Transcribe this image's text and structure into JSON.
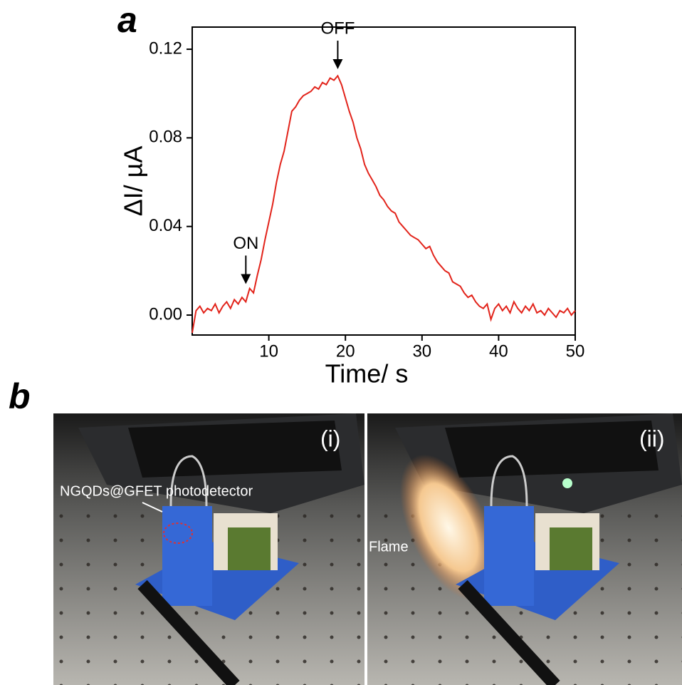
{
  "panel_labels": [
    "a",
    "b"
  ],
  "chart_data": {
    "type": "line",
    "x_label": "Time/ s",
    "y_label": "ΔI/ µA",
    "xlim": [
      0,
      50
    ],
    "ylim": [
      -0.009,
      0.13
    ],
    "xticks": [
      10,
      20,
      30,
      40,
      50
    ],
    "yticks": [
      {
        "value": 0,
        "label": "0.00"
      },
      0.04,
      0.08,
      0.12
    ],
    "color": "#e2231a",
    "x": [
      0,
      0.5,
      1,
      1.5,
      2,
      2.5,
      3,
      3.5,
      4,
      4.5,
      5,
      5.5,
      6,
      6.5,
      7,
      7.5,
      8,
      8.5,
      9,
      9.5,
      10,
      10.5,
      11,
      11.5,
      12,
      12.5,
      13,
      13.5,
      14,
      14.5,
      15,
      15.5,
      16,
      16.5,
      17,
      17.5,
      18,
      18.5,
      19,
      19.5,
      20,
      20.5,
      21,
      21.5,
      22,
      22.5,
      23,
      23.5,
      24,
      24.5,
      25,
      25.5,
      26,
      26.5,
      27,
      27.5,
      28,
      28.5,
      29,
      29.5,
      30,
      30.5,
      31,
      31.5,
      32,
      32.5,
      33,
      33.5,
      34,
      34.5,
      35,
      35.5,
      36,
      36.5,
      37,
      37.5,
      38,
      38.5,
      39,
      39.5,
      40,
      40.5,
      41,
      41.5,
      42,
      42.5,
      43,
      43.5,
      44,
      44.5,
      45,
      45.5,
      46,
      46.5,
      47,
      47.5,
      48,
      48.5,
      49,
      49.5,
      50
    ],
    "values": [
      -0.008,
      0.002,
      0.004,
      0.001,
      0.003,
      0.002,
      0.005,
      0.001,
      0.004,
      0.006,
      0.003,
      0.007,
      0.005,
      0.008,
      0.006,
      0.012,
      0.01,
      0.018,
      0.025,
      0.034,
      0.042,
      0.05,
      0.06,
      0.068,
      0.074,
      0.083,
      0.092,
      0.094,
      0.097,
      0.099,
      0.1,
      0.101,
      0.103,
      0.102,
      0.105,
      0.104,
      0.107,
      0.106,
      0.108,
      0.104,
      0.098,
      0.092,
      0.087,
      0.08,
      0.075,
      0.068,
      0.064,
      0.061,
      0.058,
      0.054,
      0.052,
      0.049,
      0.047,
      0.046,
      0.042,
      0.04,
      0.038,
      0.036,
      0.035,
      0.034,
      0.032,
      0.03,
      0.031,
      0.027,
      0.024,
      0.022,
      0.02,
      0.019,
      0.015,
      0.014,
      0.013,
      0.01,
      0.008,
      0.009,
      0.006,
      0.004,
      0.003,
      0.005,
      -0.002,
      0.003,
      0.005,
      0.002,
      0.004,
      0.001,
      0.006,
      0.003,
      0.001,
      0.004,
      0.002,
      0.005,
      0.001,
      0.002,
      0.0,
      0.003,
      0.001,
      -0.001,
      0.002,
      0.001,
      0.003,
      0.0,
      0.002
    ],
    "annotations": [
      {
        "text": "ON",
        "x": 7,
        "y": 0.014
      },
      {
        "text": "OFF",
        "x": 19,
        "y": 0.111
      }
    ]
  },
  "photos": [
    {
      "label": "(i)",
      "annotation": "NGQDs@GFET photodetector"
    },
    {
      "label": "(ii)",
      "annotation": "Flame"
    }
  ]
}
